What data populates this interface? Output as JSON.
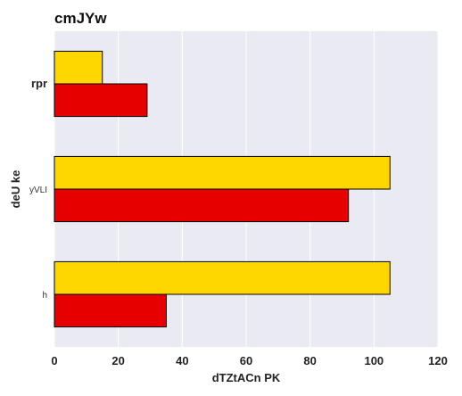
{
  "chart_data": {
    "type": "bar",
    "orientation": "horizontal",
    "title": "cmJYw",
    "xlabel": "dTZtACn PK",
    "ylabel": "deU ke",
    "categories": [
      "rpr",
      "yVLI",
      "h"
    ],
    "series": [
      {
        "values": [
          15,
          105,
          105
        ],
        "color": "#FFD700"
      },
      {
        "values": [
          29,
          92,
          35
        ],
        "color": "#E60000"
      }
    ],
    "xlim": [
      0,
      120
    ],
    "xticks": [
      0,
      20,
      40,
      60,
      80,
      100,
      120
    ],
    "grid": true,
    "plot_background": "#EAEAF2",
    "legend": "none"
  }
}
